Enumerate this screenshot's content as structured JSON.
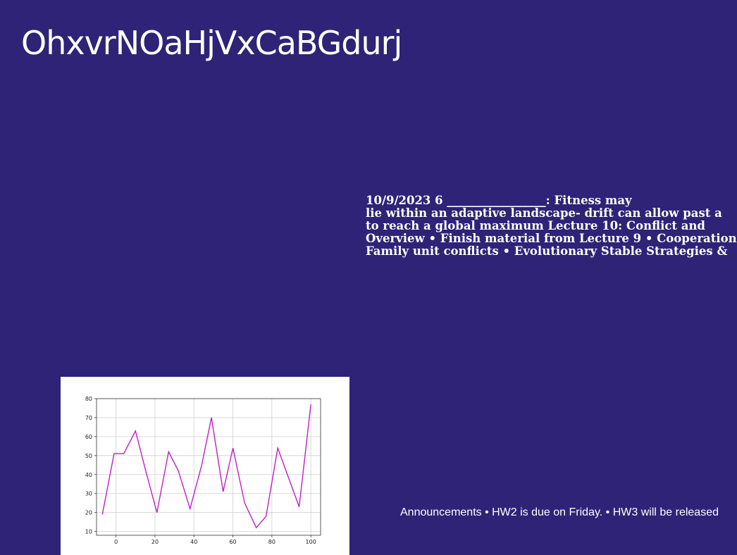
{
  "slide": {
    "title": "OhxvrNOaHjVxCaBGdurj",
    "body_lines": [
      "10/9/2023 6 _________________: Fitness may",
      "lie within an adaptive landscape- drift can allow past a",
      "to reach a global maximum Lecture 10: Conflict and",
      "Overview • Finish material from Lecture 9 • Cooperation",
      "Family unit conflicts • Evolutionary Stable Strategies &"
    ],
    "announcements": "Announcements • HW2 is due on Friday. • HW3 will be released"
  },
  "colors": {
    "background": "#2e2376",
    "text": "#ffffff",
    "line": "#c020c8"
  },
  "chart_data": {
    "type": "line",
    "title": "",
    "xlabel": "",
    "ylabel": "",
    "xlim": [
      -10,
      105
    ],
    "ylim": [
      8,
      80
    ],
    "xticks": [
      0,
      20,
      40,
      60,
      80,
      100
    ],
    "yticks": [
      10,
      20,
      30,
      40,
      50,
      60,
      70,
      80
    ],
    "grid": true,
    "series": [
      {
        "x": [
          -7,
          -1,
          4,
          10,
          15,
          21,
          27,
          32,
          38,
          44,
          49,
          55,
          60,
          66,
          72,
          77,
          83,
          89,
          94,
          100
        ],
        "y": [
          19,
          51,
          51,
          63,
          43,
          20,
          52,
          42,
          22,
          45,
          70,
          31,
          54,
          25,
          12,
          18,
          54,
          37,
          23,
          77
        ]
      }
    ]
  }
}
